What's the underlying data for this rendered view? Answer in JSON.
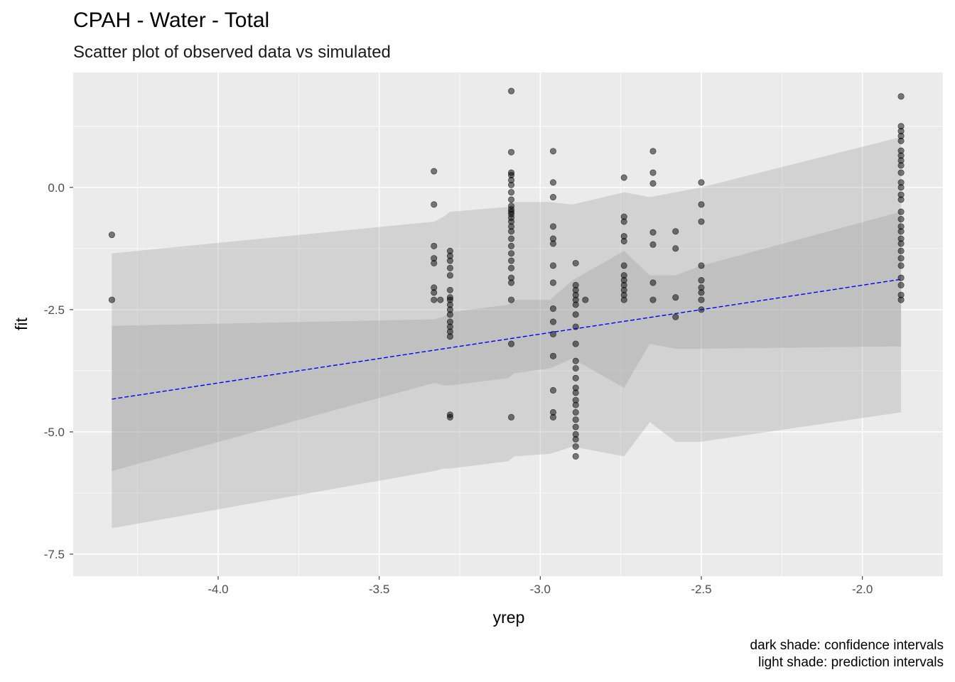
{
  "chart_data": {
    "type": "scatter",
    "title": "CPAH - Water - Total",
    "subtitle": "Scatter plot of observed data vs simulated",
    "xlabel": "yrep",
    "ylabel": "fit",
    "xlim": [
      -4.45,
      -1.75
    ],
    "ylim": [
      -7.95,
      2.35
    ],
    "x_ticks": [
      -4.0,
      -3.5,
      -3.0,
      -2.5,
      -2.0
    ],
    "x_tick_labels": [
      "-4.0",
      "-3.5",
      "-3.0",
      "-2.5",
      "-2.0"
    ],
    "y_ticks": [
      0.0,
      -2.5,
      -5.0,
      -7.5
    ],
    "y_tick_labels": [
      "0.0",
      "-2.5",
      "-5.0",
      "-7.5"
    ],
    "grid": true,
    "caption": [
      "dark shade: confidence intervals",
      "light shade: prediction intervals"
    ],
    "fit_line": {
      "color": "#0000ff",
      "style": "dashed",
      "x": [
        -4.33,
        -1.88
      ],
      "y": [
        -4.33,
        -1.88
      ]
    },
    "confidence_band": {
      "x": [
        -4.33,
        -3.33,
        -3.3,
        -3.28,
        -3.1,
        -3.08,
        -2.97,
        -2.9,
        -2.74,
        -2.66,
        -2.58,
        -2.5,
        -1.88
      ],
      "lower": [
        -5.8,
        -4.0,
        -4.05,
        -4.05,
        -3.9,
        -3.8,
        -3.7,
        -3.5,
        -4.1,
        -3.2,
        -3.3,
        -3.3,
        -3.25
      ],
      "upper": [
        -2.83,
        -2.7,
        -2.65,
        -2.55,
        -2.4,
        -2.3,
        -2.3,
        -1.9,
        -1.3,
        -1.8,
        -1.8,
        -1.6,
        -0.5
      ]
    },
    "prediction_band": {
      "x": [
        -4.33,
        -3.33,
        -3.3,
        -3.28,
        -3.1,
        -3.08,
        -2.97,
        -2.9,
        -2.74,
        -2.66,
        -2.58,
        -2.5,
        -1.88
      ],
      "lower": [
        -6.97,
        -5.8,
        -5.75,
        -5.75,
        -5.6,
        -5.5,
        -5.45,
        -5.3,
        -5.5,
        -4.8,
        -5.2,
        -5.2,
        -4.6
      ],
      "upper": [
        -1.35,
        -0.7,
        -0.6,
        -0.5,
        -0.4,
        -0.3,
        -0.3,
        -0.35,
        -0.1,
        -0.2,
        -0.1,
        0.0,
        1.03
      ]
    },
    "points": [
      [
        -4.33,
        -0.97
      ],
      [
        -4.33,
        -2.3
      ],
      [
        -3.33,
        0.33
      ],
      [
        -3.33,
        -0.35
      ],
      [
        -3.33,
        -1.2
      ],
      [
        -3.33,
        -1.45
      ],
      [
        -3.33,
        -1.55
      ],
      [
        -3.33,
        -2.05
      ],
      [
        -3.33,
        -2.15
      ],
      [
        -3.33,
        -2.3
      ],
      [
        -3.31,
        -2.3
      ],
      [
        -3.28,
        -1.3
      ],
      [
        -3.28,
        -1.4
      ],
      [
        -3.28,
        -1.5
      ],
      [
        -3.28,
        -1.65
      ],
      [
        -3.28,
        -1.8
      ],
      [
        -3.28,
        -2.1
      ],
      [
        -3.28,
        -2.25
      ],
      [
        -3.28,
        -2.3
      ],
      [
        -3.28,
        -2.4
      ],
      [
        -3.28,
        -2.5
      ],
      [
        -3.28,
        -2.6
      ],
      [
        -3.28,
        -2.75
      ],
      [
        -3.28,
        -2.85
      ],
      [
        -3.28,
        -2.95
      ],
      [
        -3.28,
        -3.05
      ],
      [
        -3.28,
        -4.65
      ],
      [
        -3.28,
        -4.7
      ],
      [
        -3.09,
        1.97
      ],
      [
        -3.09,
        0.72
      ],
      [
        -3.09,
        0.3
      ],
      [
        -3.09,
        0.25
      ],
      [
        -3.09,
        0.15
      ],
      [
        -3.09,
        0.05
      ],
      [
        -3.09,
        -0.1
      ],
      [
        -3.09,
        -0.25
      ],
      [
        -3.09,
        -0.38
      ],
      [
        -3.09,
        -0.45
      ],
      [
        -3.09,
        -0.5
      ],
      [
        -3.09,
        -0.55
      ],
      [
        -3.09,
        -0.62
      ],
      [
        -3.09,
        -0.7
      ],
      [
        -3.09,
        -0.8
      ],
      [
        -3.09,
        -0.9
      ],
      [
        -3.09,
        -1.05
      ],
      [
        -3.09,
        -1.2
      ],
      [
        -3.09,
        -1.35
      ],
      [
        -3.09,
        -1.5
      ],
      [
        -3.09,
        -1.65
      ],
      [
        -3.09,
        -1.85
      ],
      [
        -3.09,
        -1.95
      ],
      [
        -3.09,
        -2.3
      ],
      [
        -3.09,
        -3.2
      ],
      [
        -3.09,
        -4.7
      ],
      [
        -2.96,
        0.74
      ],
      [
        -2.96,
        -0.8
      ],
      [
        -2.96,
        -1.05
      ],
      [
        -2.96,
        -1.15
      ],
      [
        -2.96,
        -1.6
      ],
      [
        -2.96,
        -1.95
      ],
      [
        -2.96,
        -2.48
      ],
      [
        -2.96,
        -2.75
      ],
      [
        -2.96,
        -3.0
      ],
      [
        -2.96,
        -3.45
      ],
      [
        -2.96,
        -4.15
      ],
      [
        -2.96,
        -4.6
      ],
      [
        -2.96,
        -4.7
      ],
      [
        -2.96,
        0.1
      ],
      [
        -2.96,
        -0.2
      ],
      [
        -2.89,
        -1.55
      ],
      [
        -2.89,
        -2.0
      ],
      [
        -2.89,
        -2.1
      ],
      [
        -2.89,
        -2.2
      ],
      [
        -2.89,
        -2.3
      ],
      [
        -2.89,
        -2.4
      ],
      [
        -2.89,
        -2.6
      ],
      [
        -2.89,
        -2.85
      ],
      [
        -2.89,
        -3.2
      ],
      [
        -2.89,
        -3.55
      ],
      [
        -2.89,
        -3.7
      ],
      [
        -2.89,
        -3.9
      ],
      [
        -2.89,
        -4.1
      ],
      [
        -2.89,
        -4.2
      ],
      [
        -2.89,
        -4.35
      ],
      [
        -2.89,
        -4.45
      ],
      [
        -2.89,
        -4.6
      ],
      [
        -2.89,
        -4.75
      ],
      [
        -2.89,
        -4.9
      ],
      [
        -2.89,
        -5.05
      ],
      [
        -2.89,
        -5.15
      ],
      [
        -2.89,
        -5.3
      ],
      [
        -2.89,
        -5.5
      ],
      [
        -2.86,
        -2.3
      ],
      [
        -2.74,
        0.2
      ],
      [
        -2.74,
        -0.6
      ],
      [
        -2.74,
        -0.7
      ],
      [
        -2.74,
        -1.0
      ],
      [
        -2.74,
        -1.1
      ],
      [
        -2.74,
        -1.6
      ],
      [
        -2.74,
        -1.8
      ],
      [
        -2.74,
        -1.9
      ],
      [
        -2.74,
        -2.0
      ],
      [
        -2.74,
        -2.1
      ],
      [
        -2.74,
        -2.2
      ],
      [
        -2.74,
        -2.3
      ],
      [
        -2.65,
        0.74
      ],
      [
        -2.65,
        0.3
      ],
      [
        -2.65,
        0.08
      ],
      [
        -2.65,
        -0.92
      ],
      [
        -2.65,
        -1.17
      ],
      [
        -2.65,
        -1.95
      ],
      [
        -2.65,
        -2.3
      ],
      [
        -2.58,
        -0.9
      ],
      [
        -2.58,
        -1.25
      ],
      [
        -2.58,
        -2.25
      ],
      [
        -2.58,
        -2.65
      ],
      [
        -2.5,
        0.1
      ],
      [
        -2.5,
        -0.35
      ],
      [
        -2.5,
        -0.7
      ],
      [
        -2.5,
        -1.6
      ],
      [
        -2.5,
        -1.9
      ],
      [
        -2.5,
        -2.05
      ],
      [
        -2.5,
        -2.15
      ],
      [
        -2.5,
        -2.3
      ],
      [
        -2.5,
        -2.5
      ],
      [
        -1.88,
        1.86
      ],
      [
        -1.88,
        1.25
      ],
      [
        -1.88,
        1.15
      ],
      [
        -1.88,
        1.05
      ],
      [
        -1.88,
        0.95
      ],
      [
        -1.88,
        0.75
      ],
      [
        -1.88,
        0.65
      ],
      [
        -1.88,
        0.55
      ],
      [
        -1.88,
        0.45
      ],
      [
        -1.88,
        0.3
      ],
      [
        -1.88,
        0.1
      ],
      [
        -1.88,
        0.0
      ],
      [
        -1.88,
        -0.15
      ],
      [
        -1.88,
        -0.25
      ],
      [
        -1.88,
        -0.5
      ],
      [
        -1.88,
        -0.65
      ],
      [
        -1.88,
        -0.8
      ],
      [
        -1.88,
        -0.9
      ],
      [
        -1.88,
        -1.05
      ],
      [
        -1.88,
        -1.15
      ],
      [
        -1.88,
        -1.3
      ],
      [
        -1.88,
        -1.45
      ],
      [
        -1.88,
        -1.6
      ],
      [
        -1.88,
        -1.85
      ],
      [
        -1.88,
        -2.0
      ],
      [
        -1.88,
        -2.2
      ],
      [
        -1.88,
        -2.3
      ]
    ]
  }
}
